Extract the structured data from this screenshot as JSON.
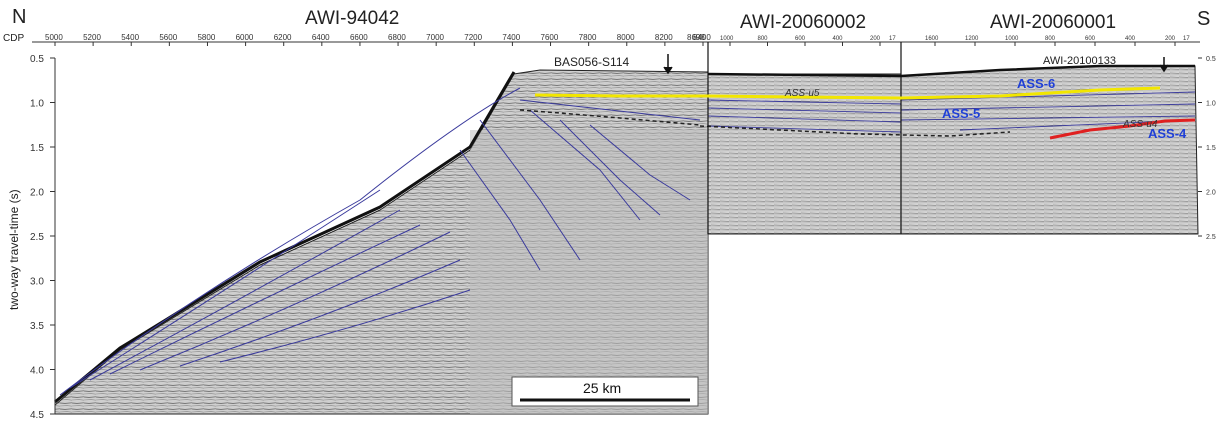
{
  "compass": {
    "north": "N",
    "south": "S"
  },
  "cdp_label": "CDP",
  "profiles": [
    {
      "name": "AWI-94042",
      "cdp_ticks": [
        "5000",
        "5200",
        "5400",
        "5600",
        "5800",
        "6000",
        "6200",
        "6400",
        "6600",
        "6800",
        "7000",
        "7200",
        "7400",
        "7600",
        "7800",
        "8000",
        "8200",
        "8400"
      ],
      "end_label": "8698"
    },
    {
      "name": "AWI-20060002",
      "cdp_ticks": [
        "1000",
        "800",
        "600",
        "400",
        "200"
      ],
      "end_label": "17"
    },
    {
      "name": "AWI-20060001",
      "cdp_ticks": [
        "1600",
        "1200",
        "1000",
        "800",
        "600",
        "400",
        "200"
      ],
      "end_label": "17"
    }
  ],
  "axis": {
    "ylabel": "two-way travel-time (s)",
    "left_ticks": [
      "0.5",
      "1.0",
      "1.5",
      "2.0",
      "2.5",
      "3.0",
      "3.5",
      "4.0",
      "4.5"
    ],
    "right_ticks": [
      "0.5",
      "1.0",
      "1.5",
      "2.0",
      "2.5"
    ]
  },
  "annotations": {
    "site_1": "BAS056-S114",
    "site_2": "AWI-20100133",
    "multiple": "multiple",
    "horizon_u5": "ASS-u5",
    "horizon_u4": "ASS-u4",
    "unit_6": "ASS-6",
    "unit_5": "ASS-5",
    "unit_4": "ASS-4"
  },
  "scale_bar": "25 km",
  "colors": {
    "horizon_u5": "#f2e600",
    "horizon_u4": "#e02020",
    "unit_labels": "#1f3fd6",
    "reflectors": "#3a3a9c",
    "seismic_bg": "#c9c9c9"
  }
}
